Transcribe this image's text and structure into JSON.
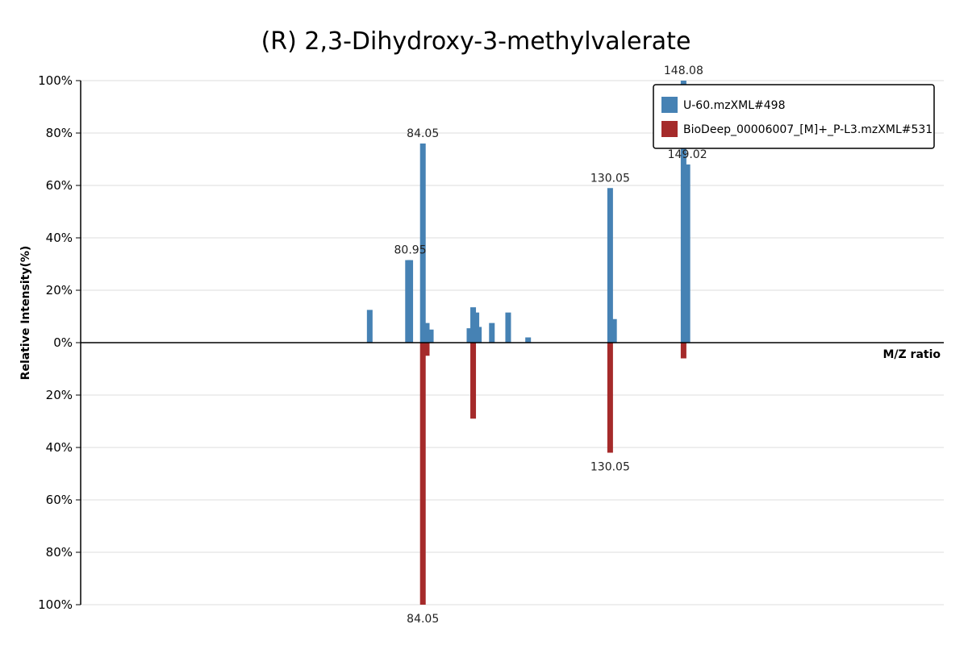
{
  "chart_data": {
    "type": "bar",
    "title": "(R) 2,3-Dihydroxy-3-methylvalerate",
    "xlabel": "M/Z ratio",
    "ylabel": "Relative Intensity(%)",
    "yticks": [
      "100%",
      "80%",
      "60%",
      "40%",
      "20%",
      "0%",
      "20%",
      "40%",
      "60%",
      "80%",
      "100%"
    ],
    "ylim": [
      -100,
      100
    ],
    "xlim": [
      0,
      212
    ],
    "grid": true,
    "legend_position": "top-right",
    "colors": {
      "query": "#4682b4",
      "reference": "#a52a2a"
    },
    "series": [
      {
        "name": "U-60.mzXML#498",
        "direction": "up",
        "peaks": [
          {
            "mz": 71.0,
            "intensity": 12.5
          },
          {
            "mz": 80.4,
            "intensity": 31.5
          },
          {
            "mz": 80.95,
            "intensity": 31.5,
            "label": "80.95"
          },
          {
            "mz": 84.05,
            "intensity": 76.0,
            "label": "84.05"
          },
          {
            "mz": 85.0,
            "intensity": 7.5
          },
          {
            "mz": 86.0,
            "intensity": 5.0
          },
          {
            "mz": 95.5,
            "intensity": 5.5
          },
          {
            "mz": 96.4,
            "intensity": 13.5
          },
          {
            "mz": 97.2,
            "intensity": 11.5
          },
          {
            "mz": 97.8,
            "intensity": 6.0
          },
          {
            "mz": 101.0,
            "intensity": 7.5
          },
          {
            "mz": 105.0,
            "intensity": 11.5
          },
          {
            "mz": 109.9,
            "intensity": 2.0
          },
          {
            "mz": 130.05,
            "intensity": 59.0,
            "label": "130.05"
          },
          {
            "mz": 131.0,
            "intensity": 9.0
          },
          {
            "mz": 148.08,
            "intensity": 100.0,
            "label": "148.08"
          },
          {
            "mz": 149.02,
            "intensity": 68.0,
            "label": "149.02"
          }
        ]
      },
      {
        "name": "BioDeep_00006007_[M]+_P-L3.mzXML#531",
        "direction": "down",
        "peaks": [
          {
            "mz": 84.05,
            "intensity": 100.0,
            "label": "84.05"
          },
          {
            "mz": 85.0,
            "intensity": 5.0
          },
          {
            "mz": 96.4,
            "intensity": 29.0
          },
          {
            "mz": 130.05,
            "intensity": 42.0,
            "label": "130.05"
          },
          {
            "mz": 148.08,
            "intensity": 6.0
          }
        ]
      }
    ]
  }
}
